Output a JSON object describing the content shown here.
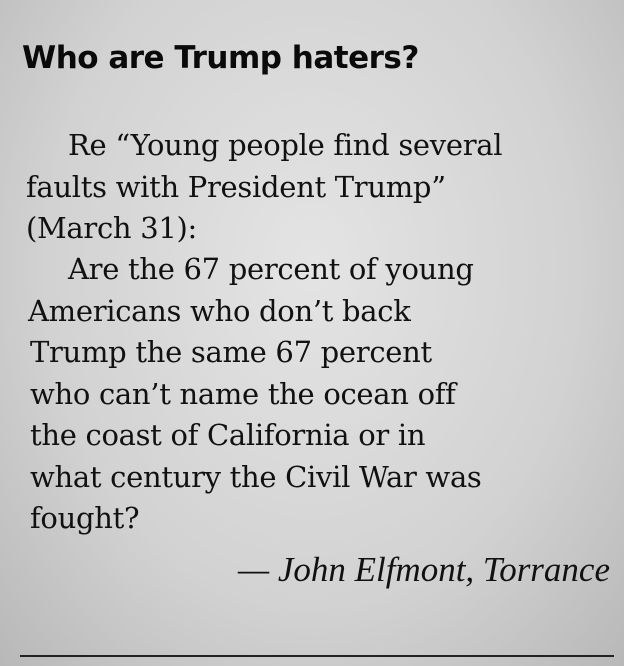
{
  "headline": "Who are Trump haters?",
  "lines": [
    "Re “Young people find several",
    "faults with President Trump”",
    "(March 31):",
    "Are the 67 percent of young",
    "Americans who don’t back",
    "Trump the same 67 percent",
    "who can’t name the ocean off",
    "the coast of California or in",
    "what century the Civil War was",
    "fought?"
  ],
  "signature": "— John Elfmont, Torrance"
}
